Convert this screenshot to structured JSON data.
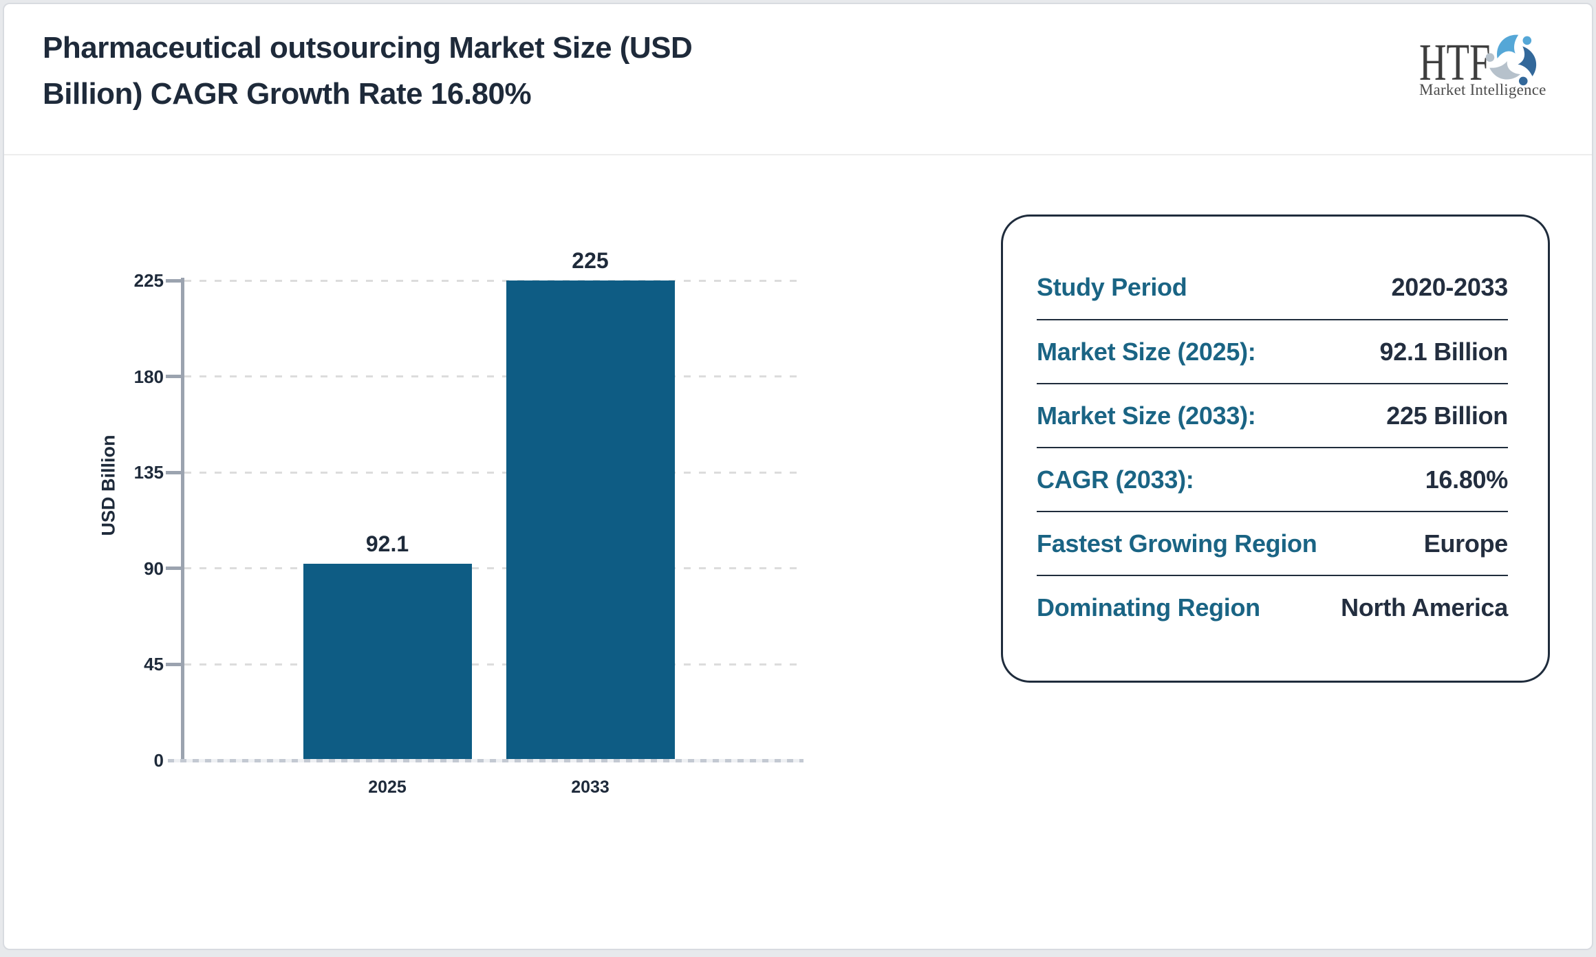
{
  "header": {
    "title": "Pharmaceutical outsourcing Market Size (USD Billion) CAGR Growth Rate 16.80%"
  },
  "logo": {
    "name": "HTF",
    "subtitle": "Market Intelligence",
    "colors": {
      "text": "#3e3e3e",
      "swirl_light_blue": "#55a7d7",
      "swirl_steel_blue": "#33689a",
      "swirl_gray": "#b6c1cb"
    }
  },
  "chart_data": {
    "type": "bar",
    "title": "Pharmaceutical outsourcing Market Size (USD Billion) CAGR Growth Rate 16.80%",
    "categories": [
      "2025",
      "2033"
    ],
    "values": [
      92.1,
      225
    ],
    "value_labels": [
      "92.1",
      "225"
    ],
    "xlabel": "",
    "ylabel": "USD Billion",
    "ylim": [
      0,
      225
    ],
    "yticks": [
      0,
      45,
      90,
      135,
      180,
      225
    ],
    "grid": true,
    "legend": false,
    "bar_color": "#0e5c84"
  },
  "panel": {
    "rows": [
      {
        "label": "Study Period",
        "value": "2020-2033"
      },
      {
        "label": "Market Size (2025):",
        "value": "92.1 Billion"
      },
      {
        "label": "Market Size (2033):",
        "value": "225 Billion"
      },
      {
        "label": "CAGR (2033):",
        "value": "16.80%"
      },
      {
        "label": "Fastest Growing Region",
        "value": "Europe"
      },
      {
        "label": "Dominating Region",
        "value": "North America"
      }
    ]
  },
  "colors": {
    "bar": "#0e5c84",
    "panel_label": "#1a6484",
    "dark_text": "#1e2a3a",
    "axis_gray": "#9ba3af",
    "gridline_gray": "#dcdcdc",
    "panel_border": "#1f2c3c",
    "page_border": "#d8dbe0"
  }
}
